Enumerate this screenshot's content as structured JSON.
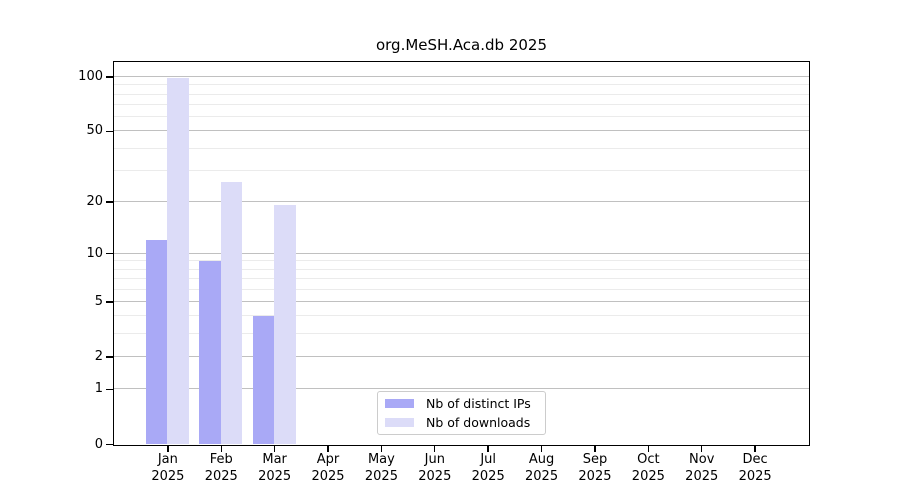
{
  "figure": {
    "title": "org.MeSH.Aca.db 2025"
  },
  "chart_data": {
    "type": "bar",
    "title": "org.MeSH.Aca.db 2025",
    "categories": [
      {
        "month": "Jan",
        "year": "2025"
      },
      {
        "month": "Feb",
        "year": "2025"
      },
      {
        "month": "Mar",
        "year": "2025"
      },
      {
        "month": "Apr",
        "year": "2025"
      },
      {
        "month": "May",
        "year": "2025"
      },
      {
        "month": "Jun",
        "year": "2025"
      },
      {
        "month": "Jul",
        "year": "2025"
      },
      {
        "month": "Aug",
        "year": "2025"
      },
      {
        "month": "Sep",
        "year": "2025"
      },
      {
        "month": "Oct",
        "year": "2025"
      },
      {
        "month": "Nov",
        "year": "2025"
      },
      {
        "month": "Dec",
        "year": "2025"
      }
    ],
    "series": [
      {
        "name": "Nb of distinct IPs",
        "color": "#a9a9f6",
        "values": [
          12,
          9,
          4,
          0,
          0,
          0,
          0,
          0,
          0,
          0,
          0,
          0
        ]
      },
      {
        "name": "Nb of downloads",
        "color": "#dcdcf8",
        "values": [
          98,
          26,
          19,
          0,
          0,
          0,
          0,
          0,
          0,
          0,
          0,
          0
        ]
      }
    ],
    "y_axis": {
      "scale": "log1p",
      "tick_values": [
        0,
        1,
        2,
        5,
        10,
        20,
        50,
        100
      ],
      "minor_gridline_values": [
        3,
        4,
        6,
        7,
        8,
        9,
        30,
        40,
        60,
        70,
        80,
        90
      ],
      "range": [
        0,
        100
      ]
    },
    "x_axis": {
      "tick_label_format": "Mon YYYY"
    },
    "legend_position": "bottom-center",
    "grid": true,
    "colors": {
      "major_grid": "#c0c0c0",
      "minor_grid": "#ebebeb",
      "axis": "#000000",
      "background": "#ffffff"
    }
  }
}
